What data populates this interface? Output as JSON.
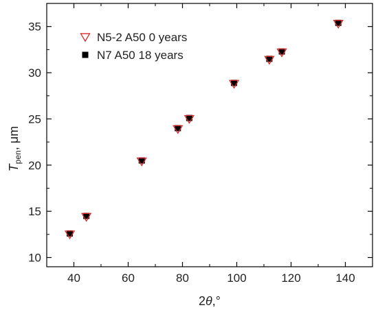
{
  "chart_data": {
    "type": "scatter",
    "title": "",
    "xlabel": {
      "main": "2",
      "italic": "θ",
      "suffix": ",°"
    },
    "ylabel": {
      "italic": "T",
      "subscript": "pen",
      "suffix": ", μm"
    },
    "xlim": [
      30,
      150
    ],
    "ylim": [
      9,
      37.5
    ],
    "xticks": [
      40,
      60,
      80,
      100,
      120,
      140
    ],
    "yticks": [
      10,
      15,
      20,
      25,
      30,
      35
    ],
    "grid": false,
    "legend_position": "top-left",
    "series": [
      {
        "name": "N5-2 A50 0 years",
        "marker": "triangle-down-open",
        "color": "#d62728",
        "points": [
          {
            "x": 38.5,
            "y": 12.5
          },
          {
            "x": 44.6,
            "y": 14.4
          },
          {
            "x": 65.0,
            "y": 20.4
          },
          {
            "x": 78.3,
            "y": 23.9
          },
          {
            "x": 82.5,
            "y": 25.0
          },
          {
            "x": 99.0,
            "y": 28.8
          },
          {
            "x": 112.0,
            "y": 31.4
          },
          {
            "x": 116.6,
            "y": 32.2
          },
          {
            "x": 137.4,
            "y": 35.3
          }
        ]
      },
      {
        "name": "N7 A50 18 years",
        "marker": "square-filled",
        "color": "#000000",
        "points": [
          {
            "x": 38.5,
            "y": 12.6
          },
          {
            "x": 44.6,
            "y": 14.5
          },
          {
            "x": 65.0,
            "y": 20.5
          },
          {
            "x": 78.3,
            "y": 24.0
          },
          {
            "x": 82.5,
            "y": 25.1
          },
          {
            "x": 99.0,
            "y": 28.9
          },
          {
            "x": 112.0,
            "y": 31.5
          },
          {
            "x": 116.6,
            "y": 32.3
          },
          {
            "x": 137.4,
            "y": 35.4
          }
        ]
      }
    ]
  }
}
